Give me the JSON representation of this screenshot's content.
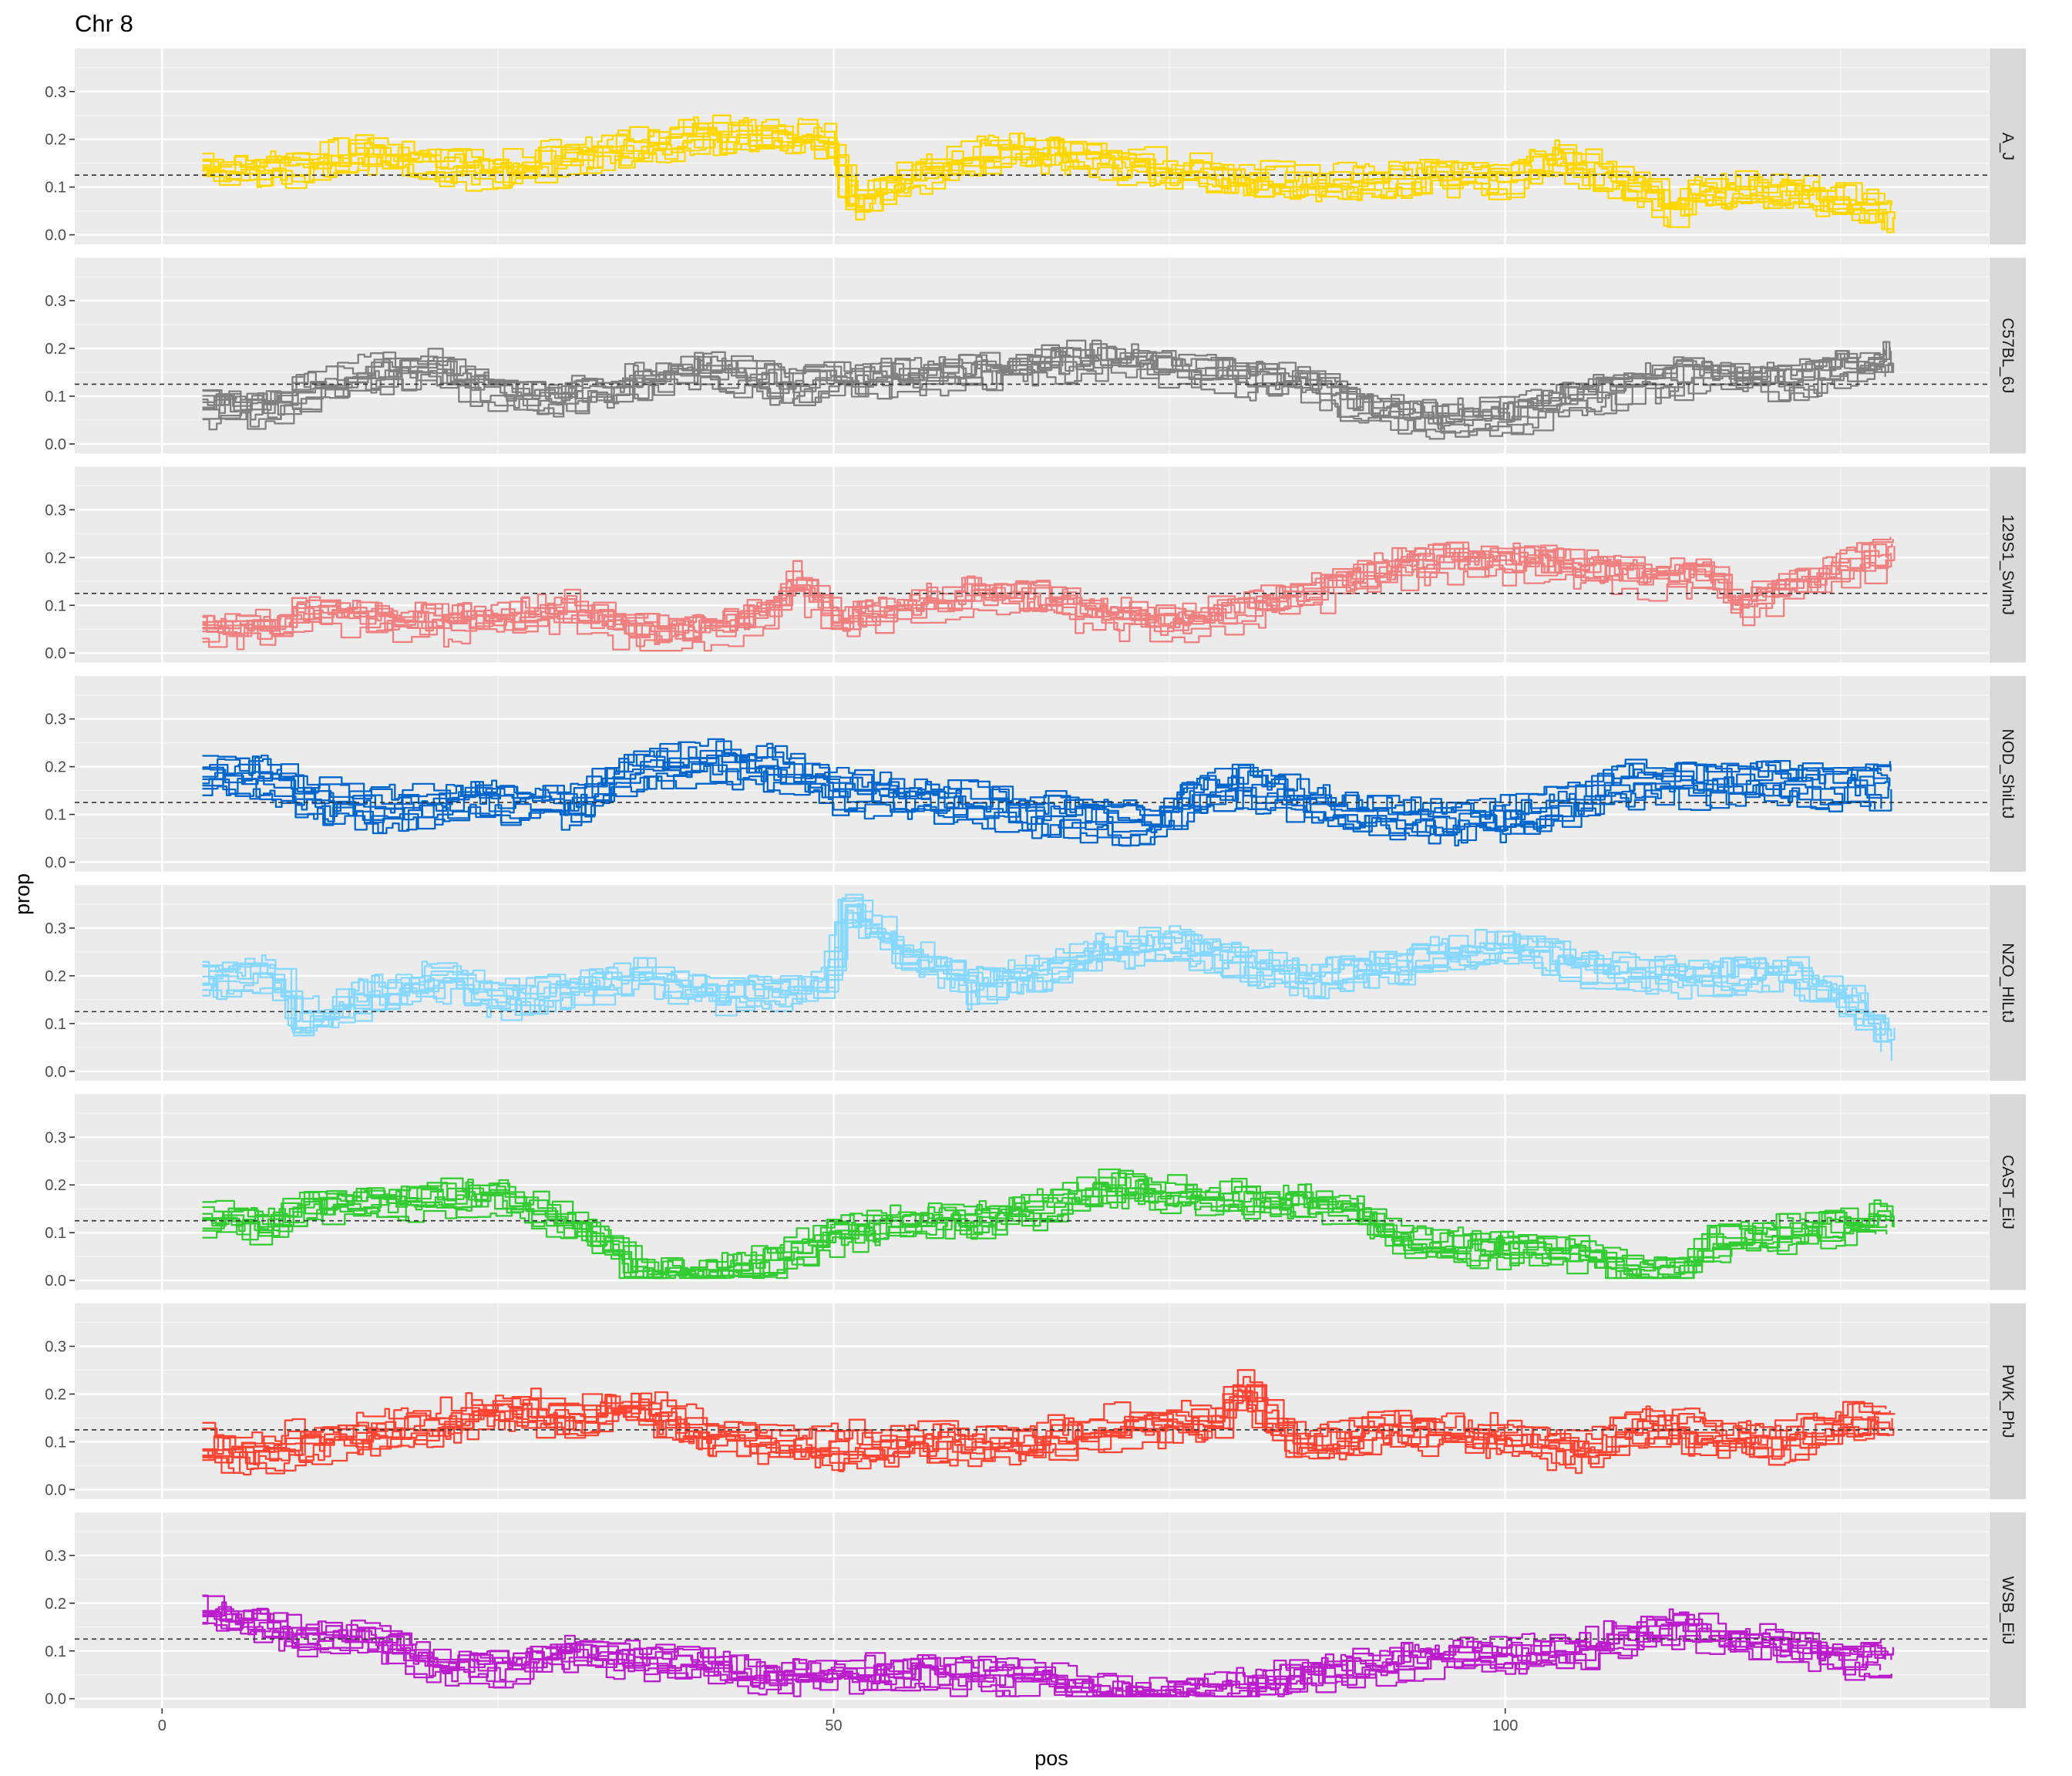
{
  "chart_data": {
    "type": "line",
    "title": "Chr 8",
    "xlabel": "pos",
    "ylabel": "prop",
    "xlim": [
      -6.5,
      136
    ],
    "ylim": [
      -0.02,
      0.39
    ],
    "x_ticks": [
      0,
      50,
      100
    ],
    "x_tick_labels": [
      "0",
      "50",
      "100"
    ],
    "y_ticks": [
      0.0,
      0.1,
      0.2,
      0.3
    ],
    "y_tick_labels": [
      "0.0",
      "0.1",
      "0.2",
      "0.3"
    ],
    "reference_line": {
      "y": 0.125,
      "style": "dashed"
    },
    "grid": true,
    "facet_layout": "rows",
    "x_range_data": [
      3,
      129
    ],
    "line_count_per_panel": 10,
    "panels": [
      {
        "label": "A_J",
        "color": "#FFD700",
        "x": [
          3,
          10,
          15,
          20,
          25,
          30,
          35,
          40,
          45,
          50,
          50.5,
          55,
          60,
          65,
          70,
          75,
          80,
          85,
          90,
          95,
          100,
          103,
          105,
          110,
          112,
          115,
          120,
          125,
          129
        ],
        "y": [
          0.14,
          0.15,
          0.18,
          0.15,
          0.14,
          0.17,
          0.19,
          0.21,
          0.22,
          0.2,
          0.07,
          0.12,
          0.17,
          0.18,
          0.16,
          0.14,
          0.12,
          0.11,
          0.12,
          0.13,
          0.12,
          0.17,
          0.15,
          0.1,
          0.06,
          0.1,
          0.1,
          0.08,
          0.04
        ]
      },
      {
        "label": "C57BL_6J",
        "color": "#808080",
        "x": [
          3,
          8,
          10,
          15,
          20,
          25,
          30,
          35,
          40,
          45,
          50,
          55,
          60,
          65,
          70,
          75,
          80,
          85,
          88,
          90,
          95,
          100,
          105,
          110,
          115,
          120,
          125,
          129
        ],
        "y": [
          0.08,
          0.07,
          0.11,
          0.15,
          0.16,
          0.1,
          0.1,
          0.13,
          0.16,
          0.13,
          0.13,
          0.14,
          0.15,
          0.17,
          0.18,
          0.16,
          0.14,
          0.13,
          0.09,
          0.07,
          0.05,
          0.06,
          0.1,
          0.13,
          0.15,
          0.13,
          0.16,
          0.18
        ]
      },
      {
        "label": "129S1_SvImJ",
        "color": "#F08080",
        "x": [
          3,
          8,
          10,
          15,
          20,
          25,
          30,
          35,
          40,
          45,
          47,
          50,
          55,
          60,
          65,
          70,
          75,
          80,
          85,
          90,
          95,
          100,
          105,
          110,
          115,
          117,
          120,
          125,
          129
        ],
        "y": [
          0.05,
          0.05,
          0.08,
          0.07,
          0.06,
          0.07,
          0.09,
          0.04,
          0.04,
          0.08,
          0.15,
          0.06,
          0.09,
          0.12,
          0.11,
          0.08,
          0.06,
          0.09,
          0.12,
          0.17,
          0.19,
          0.19,
          0.18,
          0.16,
          0.16,
          0.1,
          0.12,
          0.18,
          0.21
        ]
      },
      {
        "label": "NOD_ShiLtJ",
        "color": "#0066CC",
        "x": [
          3,
          8,
          10,
          15,
          20,
          25,
          30,
          35,
          40,
          45,
          50,
          55,
          60,
          65,
          70,
          73,
          78,
          80,
          85,
          90,
          95,
          100,
          105,
          110,
          115,
          120,
          125,
          129
        ],
        "y": [
          0.18,
          0.17,
          0.14,
          0.11,
          0.12,
          0.13,
          0.11,
          0.19,
          0.21,
          0.2,
          0.15,
          0.13,
          0.12,
          0.1,
          0.09,
          0.07,
          0.15,
          0.16,
          0.12,
          0.1,
          0.08,
          0.09,
          0.13,
          0.17,
          0.16,
          0.17,
          0.15,
          0.16
        ]
      },
      {
        "label": "NZO_HlLtJ",
        "color": "#87D8FF",
        "x": [
          3,
          8,
          10,
          15,
          20,
          25,
          30,
          35,
          40,
          45,
          49,
          50.5,
          55,
          60,
          65,
          70,
          75,
          80,
          85,
          90,
          95,
          100,
          105,
          110,
          115,
          120,
          125,
          128,
          129
        ],
        "y": [
          0.19,
          0.2,
          0.1,
          0.15,
          0.19,
          0.15,
          0.16,
          0.2,
          0.16,
          0.16,
          0.17,
          0.34,
          0.25,
          0.17,
          0.2,
          0.25,
          0.26,
          0.22,
          0.19,
          0.21,
          0.24,
          0.26,
          0.22,
          0.2,
          0.19,
          0.21,
          0.15,
          0.07,
          0.06
        ]
      },
      {
        "label": "CAST_EiJ",
        "color": "#33CC33",
        "x": [
          3,
          8,
          10,
          15,
          20,
          25,
          30,
          33,
          35,
          40,
          45,
          50,
          55,
          60,
          65,
          70,
          75,
          80,
          85,
          90,
          92,
          95,
          100,
          105,
          110,
          113,
          115,
          120,
          125,
          129
        ],
        "y": [
          0.13,
          0.12,
          0.16,
          0.17,
          0.17,
          0.18,
          0.12,
          0.08,
          0.02,
          0.02,
          0.04,
          0.1,
          0.12,
          0.13,
          0.15,
          0.2,
          0.18,
          0.17,
          0.17,
          0.13,
          0.08,
          0.07,
          0.07,
          0.06,
          0.02,
          0.02,
          0.08,
          0.1,
          0.12,
          0.13
        ]
      },
      {
        "label": "PWK_PhJ",
        "color": "#FF4433",
        "x": [
          3,
          8,
          10,
          15,
          20,
          25,
          30,
          35,
          40,
          45,
          50,
          55,
          60,
          65,
          70,
          75,
          78,
          80,
          82,
          85,
          90,
          95,
          100,
          105,
          110,
          115,
          120,
          125,
          129
        ],
        "y": [
          0.09,
          0.08,
          0.1,
          0.12,
          0.14,
          0.17,
          0.15,
          0.18,
          0.12,
          0.1,
          0.09,
          0.1,
          0.1,
          0.1,
          0.13,
          0.14,
          0.14,
          0.22,
          0.15,
          0.09,
          0.13,
          0.12,
          0.11,
          0.08,
          0.14,
          0.11,
          0.1,
          0.14,
          0.15
        ]
      },
      {
        "label": "WSB_EiJ",
        "color": "#BB1DCC",
        "x": [
          3,
          8,
          10,
          15,
          20,
          25,
          30,
          35,
          40,
          45,
          50,
          55,
          60,
          65,
          70,
          75,
          80,
          85,
          90,
          95,
          100,
          105,
          110,
          113,
          115,
          120,
          125,
          129
        ],
        "y": [
          0.18,
          0.15,
          0.12,
          0.13,
          0.07,
          0.06,
          0.1,
          0.08,
          0.07,
          0.04,
          0.05,
          0.05,
          0.05,
          0.04,
          0.01,
          0.01,
          0.02,
          0.05,
          0.07,
          0.09,
          0.09,
          0.1,
          0.14,
          0.15,
          0.13,
          0.12,
          0.08,
          0.08
        ]
      }
    ]
  }
}
